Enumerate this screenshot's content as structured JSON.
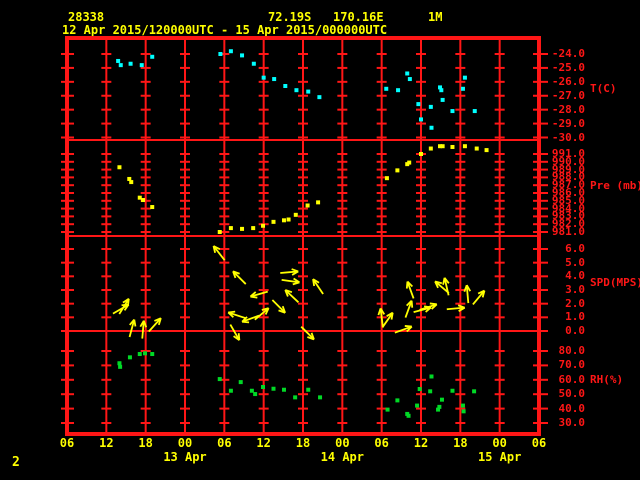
{
  "header": {
    "station_id": "28338",
    "latitude": "72.19S",
    "longitude": "170.16E",
    "elevation": "1M",
    "time_range": "12 Apr 2015/120000UTC - 15 Apr 2015/000000UTC"
  },
  "page_number": "2",
  "colors": {
    "background": "#000000",
    "grid": "#ff1616",
    "text_yellow": "#ffff00",
    "temperature": "#00ffff",
    "pressure": "#ffff00",
    "wind": "#ffff00",
    "humidity": "#00d926"
  },
  "x_axis": {
    "hour_values": [
      6,
      12,
      18,
      24,
      30,
      36,
      42,
      48,
      54,
      60,
      66,
      72,
      78
    ],
    "hour_labels": [
      "06",
      "12",
      "18",
      "00",
      "06",
      "12",
      "18",
      "00",
      "06",
      "12",
      "18",
      "00",
      "06"
    ],
    "date_labels": [
      {
        "label": "13 Apr",
        "hour": 24
      },
      {
        "label": "14 Apr",
        "hour": 48
      },
      {
        "label": "15 Apr",
        "hour": 72
      }
    ]
  },
  "chart_data": [
    {
      "type": "scatter",
      "name": "temperature",
      "ylabel": "T(C)",
      "ytick_labels": [
        "-24.0",
        "-25.0",
        "-26.0",
        "-27.0",
        "-28.0",
        "-29.0",
        "-30.0"
      ],
      "ytick_values": [
        -24,
        -25,
        -26,
        -27,
        -28,
        -29,
        -30
      ],
      "ylim": [
        -30.5,
        -23.5
      ],
      "marker_color": "#00ffff",
      "points": [
        [
          13.8,
          -24.5
        ],
        [
          14.2,
          -24.8
        ],
        [
          15.7,
          -24.7
        ],
        [
          17.4,
          -24.8
        ],
        [
          19.0,
          -24.2
        ],
        [
          29.4,
          -24.0
        ],
        [
          31.0,
          -23.8
        ],
        [
          32.7,
          -24.1
        ],
        [
          34.5,
          -24.7
        ],
        [
          36.0,
          -25.7
        ],
        [
          37.6,
          -25.8
        ],
        [
          39.3,
          -26.3
        ],
        [
          41.0,
          -26.6
        ],
        [
          42.8,
          -26.7
        ],
        [
          44.5,
          -27.1
        ],
        [
          54.7,
          -26.5
        ],
        [
          56.5,
          -26.6
        ],
        [
          57.9,
          -25.4
        ],
        [
          58.3,
          -25.8
        ],
        [
          59.6,
          -27.6
        ],
        [
          60.0,
          -28.7
        ],
        [
          61.5,
          -27.8
        ],
        [
          61.6,
          -29.3
        ],
        [
          62.9,
          -26.4
        ],
        [
          63.1,
          -26.6
        ],
        [
          63.3,
          -27.3
        ],
        [
          64.8,
          -28.1
        ],
        [
          66.4,
          -26.5
        ],
        [
          66.7,
          -25.7
        ],
        [
          68.2,
          -28.1
        ]
      ]
    },
    {
      "type": "scatter",
      "name": "pressure",
      "ylabel": "Pre (mb)",
      "ytick_labels": [
        "991.0",
        "990.0",
        "989.0",
        "988.0",
        "987.0",
        "986.0",
        "985.0",
        "984.0",
        "983.0",
        "982.0",
        "981.0"
      ],
      "ytick_values": [
        991,
        990,
        989,
        988,
        987,
        986,
        985,
        984,
        983,
        982,
        981
      ],
      "ylim": [
        980.5,
        992.5
      ],
      "marker_color": "#ffff00",
      "points": [
        [
          14.0,
          989.3
        ],
        [
          15.5,
          987.8
        ],
        [
          15.8,
          987.4
        ],
        [
          17.1,
          985.4
        ],
        [
          17.6,
          985.1
        ],
        [
          19.0,
          984.2
        ],
        [
          29.3,
          981.0
        ],
        [
          31.0,
          981.5
        ],
        [
          32.7,
          981.4
        ],
        [
          34.4,
          981.5
        ],
        [
          35.9,
          981.8
        ],
        [
          37.5,
          982.3
        ],
        [
          39.1,
          982.5
        ],
        [
          39.8,
          982.6
        ],
        [
          40.9,
          983.2
        ],
        [
          42.7,
          984.4
        ],
        [
          44.3,
          984.8
        ],
        [
          54.8,
          987.9
        ],
        [
          56.4,
          988.9
        ],
        [
          57.9,
          989.7
        ],
        [
          58.2,
          989.9
        ],
        [
          60.0,
          991.0
        ],
        [
          61.5,
          991.7
        ],
        [
          62.9,
          992.0
        ],
        [
          63.3,
          992.0
        ],
        [
          64.8,
          991.9
        ],
        [
          66.7,
          992.0
        ],
        [
          68.5,
          991.7
        ],
        [
          70.0,
          991.5
        ]
      ]
    },
    {
      "type": "scatter",
      "name": "wind_speed",
      "ylabel": "SPD(MPS)",
      "ytick_labels": [
        "6.0",
        "5.0",
        "4.0",
        "3.0",
        "2.0",
        "1.0",
        "0.0"
      ],
      "ytick_values": [
        6,
        5,
        4,
        3,
        2,
        1,
        0
      ],
      "ylim": [
        -0.5,
        6.5
      ],
      "marker": "arrow",
      "marker_color": "#ffff00",
      "arrow_note": "each point = [hour, speed_mps, screen_direction_deg (0=right,90=up)]",
      "points": [
        [
          14.7,
          1.8,
          58
        ],
        [
          14.2,
          1.6,
          30
        ],
        [
          15.9,
          0.2,
          75
        ],
        [
          17.6,
          0.1,
          85
        ],
        [
          19.4,
          0.45,
          48
        ],
        [
          29.2,
          5.7,
          128
        ],
        [
          32.3,
          3.9,
          135
        ],
        [
          35.3,
          2.7,
          196
        ],
        [
          31.9,
          1.15,
          162
        ],
        [
          34.0,
          0.9,
          200
        ],
        [
          35.7,
          1.25,
          40
        ],
        [
          31.6,
          -0.1,
          300
        ],
        [
          39.9,
          4.3,
          5
        ],
        [
          40.1,
          3.65,
          352
        ],
        [
          40.3,
          2.55,
          137
        ],
        [
          38.3,
          1.8,
          315
        ],
        [
          44.3,
          3.25,
          124
        ],
        [
          42.7,
          -0.15,
          315
        ],
        [
          54.0,
          1.0,
          97
        ],
        [
          54.9,
          0.8,
          55
        ],
        [
          58.4,
          3.0,
          110
        ],
        [
          58.1,
          1.6,
          70
        ],
        [
          57.3,
          0.1,
          20
        ],
        [
          60.2,
          1.55,
          15
        ],
        [
          61.1,
          1.75,
          18
        ],
        [
          63.9,
          3.25,
          103
        ],
        [
          63.2,
          3.2,
          140
        ],
        [
          67.1,
          2.7,
          95
        ],
        [
          68.8,
          2.45,
          50
        ],
        [
          65.3,
          1.65,
          5
        ]
      ]
    },
    {
      "type": "scatter",
      "name": "relative_humidity",
      "ylabel": "RH(%)",
      "ytick_labels": [
        "80.0",
        "70.0",
        "60.0",
        "50.0",
        "40.0",
        "30.0"
      ],
      "ytick_values": [
        80,
        70,
        60,
        50,
        40,
        30
      ],
      "ylim": [
        25,
        85
      ],
      "marker_color": "#00d926",
      "points": [
        [
          14.0,
          71.5
        ],
        [
          14.1,
          69.0
        ],
        [
          15.6,
          75.6
        ],
        [
          17.1,
          77.9
        ],
        [
          17.9,
          78.4
        ],
        [
          19.0,
          77.9
        ],
        [
          29.3,
          60.5
        ],
        [
          31.0,
          52.4
        ],
        [
          32.5,
          58.4
        ],
        [
          34.2,
          52.4
        ],
        [
          34.7,
          50.1
        ],
        [
          35.9,
          55.0
        ],
        [
          37.5,
          53.8
        ],
        [
          39.1,
          53.1
        ],
        [
          40.8,
          47.8
        ],
        [
          42.8,
          53.1
        ],
        [
          44.6,
          47.8
        ],
        [
          54.9,
          39.3
        ],
        [
          56.4,
          45.7
        ],
        [
          57.9,
          36.3
        ],
        [
          58.1,
          35.0
        ],
        [
          59.4,
          42.1
        ],
        [
          59.8,
          53.6
        ],
        [
          61.4,
          52.0
        ],
        [
          61.6,
          62.3
        ],
        [
          62.6,
          39.3
        ],
        [
          62.8,
          41.2
        ],
        [
          63.2,
          46.2
        ],
        [
          64.8,
          52.4
        ],
        [
          66.4,
          42.1
        ],
        [
          66.5,
          38.1
        ],
        [
          68.1,
          52.0
        ]
      ]
    }
  ]
}
